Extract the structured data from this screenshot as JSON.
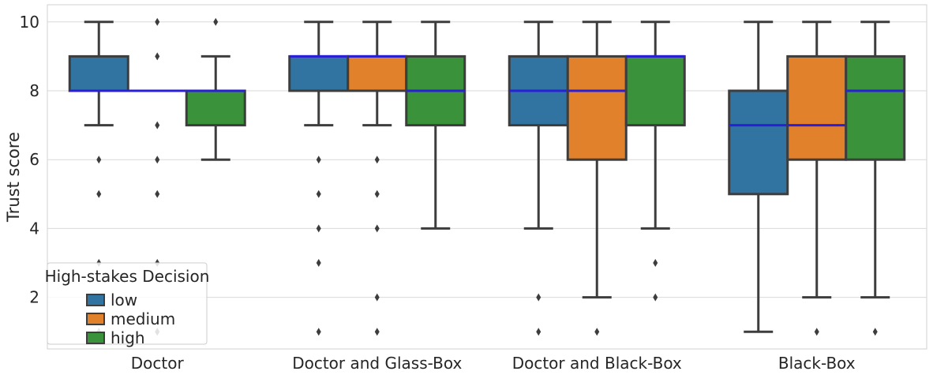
{
  "chart_data": {
    "type": "box",
    "ylabel": "Trust score",
    "ylim": [
      0.5,
      10.5
    ],
    "yticks": [
      2,
      4,
      6,
      8,
      10
    ],
    "grid": true,
    "categories": [
      "Doctor",
      "Doctor and Glass-Box",
      "Doctor and Black-Box",
      "Black-Box"
    ],
    "legend": {
      "title": "High-stakes Decision",
      "position": "lower-left"
    },
    "series": [
      {
        "name": "low",
        "color": "#3274a1",
        "boxes": [
          {
            "q1": 8,
            "median": 8,
            "q3": 9,
            "whisker_low": 7,
            "whisker_high": 10,
            "outliers": [
              6,
              5,
              3,
              1
            ]
          },
          {
            "q1": 8,
            "median": 9,
            "q3": 9,
            "whisker_low": 7,
            "whisker_high": 10,
            "outliers": [
              6,
              5,
              4,
              3,
              1
            ]
          },
          {
            "q1": 7,
            "median": 8,
            "q3": 9,
            "whisker_low": 4,
            "whisker_high": 10,
            "outliers": [
              2,
              1
            ]
          },
          {
            "q1": 5,
            "median": 7,
            "q3": 8,
            "whisker_low": 1,
            "whisker_high": 10,
            "outliers": []
          }
        ]
      },
      {
        "name": "medium",
        "color": "#e1812c",
        "boxes": [
          {
            "q1": 8,
            "median": 8,
            "q3": 8,
            "whisker_low": 8,
            "whisker_high": 8,
            "outliers": [
              10,
              9,
              7,
              6,
              5,
              3,
              1
            ]
          },
          {
            "q1": 8,
            "median": 9,
            "q3": 9,
            "whisker_low": 7,
            "whisker_high": 10,
            "outliers": [
              6,
              5,
              4,
              2,
              1
            ]
          },
          {
            "q1": 6,
            "median": 8,
            "q3": 9,
            "whisker_low": 2,
            "whisker_high": 10,
            "outliers": [
              1
            ]
          },
          {
            "q1": 6,
            "median": 7,
            "q3": 9,
            "whisker_low": 2,
            "whisker_high": 10,
            "outliers": [
              1
            ]
          }
        ]
      },
      {
        "name": "high",
        "color": "#3a923a",
        "boxes": [
          {
            "q1": 7,
            "median": 8,
            "q3": 8,
            "whisker_low": 6,
            "whisker_high": 9,
            "outliers": [
              10
            ]
          },
          {
            "q1": 7,
            "median": 8,
            "q3": 9,
            "whisker_low": 4,
            "whisker_high": 10,
            "outliers": []
          },
          {
            "q1": 7,
            "median": 9,
            "q3": 9,
            "whisker_low": 4,
            "whisker_high": 10,
            "outliers": [
              3,
              2
            ]
          },
          {
            "q1": 6,
            "median": 8,
            "q3": 9,
            "whisker_low": 2,
            "whisker_high": 10,
            "outliers": [
              1
            ]
          }
        ]
      }
    ],
    "median_color": "#2a1fd8"
  }
}
